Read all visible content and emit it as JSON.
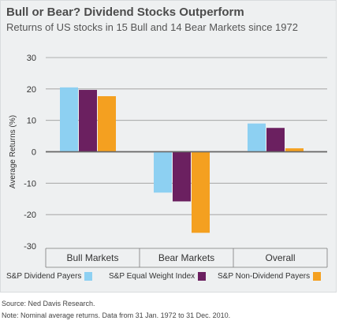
{
  "title": "Bull or Bear? Dividend Stocks Outperform",
  "subtitle": "Returns of US stocks in 15 Bull and 14 Bear Markets since 1972",
  "source": "Source: Ned Davis Research.",
  "note": "Note: Nominal average returns. Data from 31 Jan. 1972 to 31 Dec. 2010.",
  "colors": {
    "dividend": "#8dd0f2",
    "equal_weight": "#6b2060",
    "non_dividend": "#f4a020",
    "grid": "#9a9a9a",
    "zero_line": "#666666"
  },
  "chart_data": {
    "type": "bar",
    "categories": [
      "Bull Markets",
      "Bear Markets",
      "Overall"
    ],
    "series": [
      {
        "name": "S&P Dividend Payers",
        "values": [
          20.5,
          -13.0,
          9.0
        ]
      },
      {
        "name": "S&P Equal Weight Index",
        "values": [
          19.7,
          -15.8,
          7.6
        ]
      },
      {
        "name": "S&P Non-Dividend Payers",
        "values": [
          17.7,
          -25.8,
          1.1
        ]
      }
    ],
    "ylabel": "Average Returns (%)",
    "xlabel": "",
    "ylim": [
      -30,
      30
    ],
    "yticks": [
      30,
      20,
      10,
      0,
      -10,
      -20,
      -30
    ],
    "grid": true,
    "legend": "bottom"
  }
}
